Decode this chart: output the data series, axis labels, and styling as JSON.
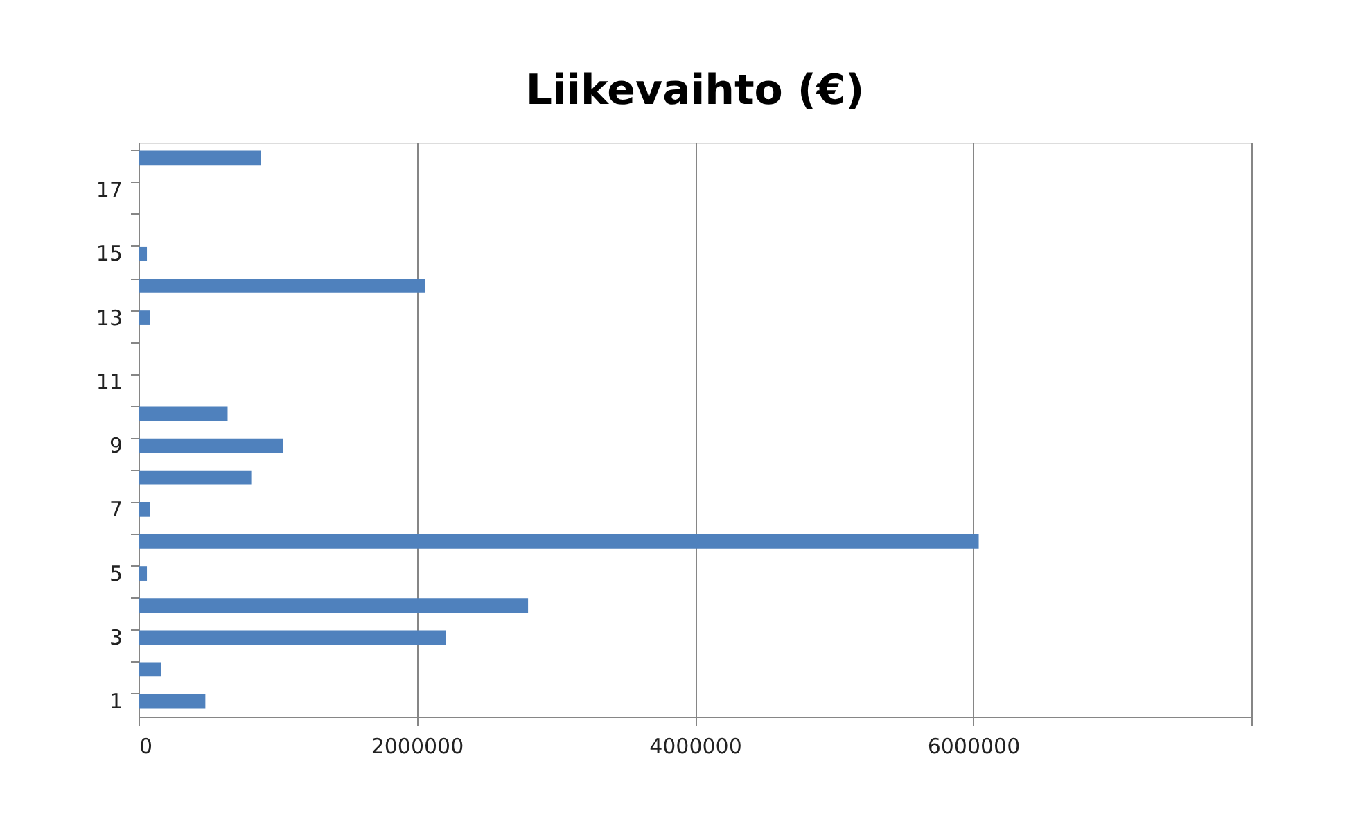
{
  "chart_data": {
    "type": "bar",
    "orientation": "horizontal",
    "title": "Liikevaihto (€)",
    "categories": [
      null,
      "17",
      null,
      "15",
      null,
      "13",
      null,
      "11",
      null,
      "9",
      null,
      "7",
      null,
      "5",
      null,
      "3",
      null,
      "1"
    ],
    "values": [
      880000,
      null,
      null,
      60000,
      2060000,
      80000,
      null,
      null,
      640000,
      1040000,
      810000,
      80000,
      6040000,
      60000,
      2800000,
      2210000,
      160000,
      480000
    ],
    "color": "#4f81bd",
    "xlim": [
      0,
      8000000
    ],
    "xticks": [
      0,
      2000000,
      4000000,
      6000000,
      {
        "value": 8000000,
        "label": null
      }
    ],
    "grid": "x"
  }
}
